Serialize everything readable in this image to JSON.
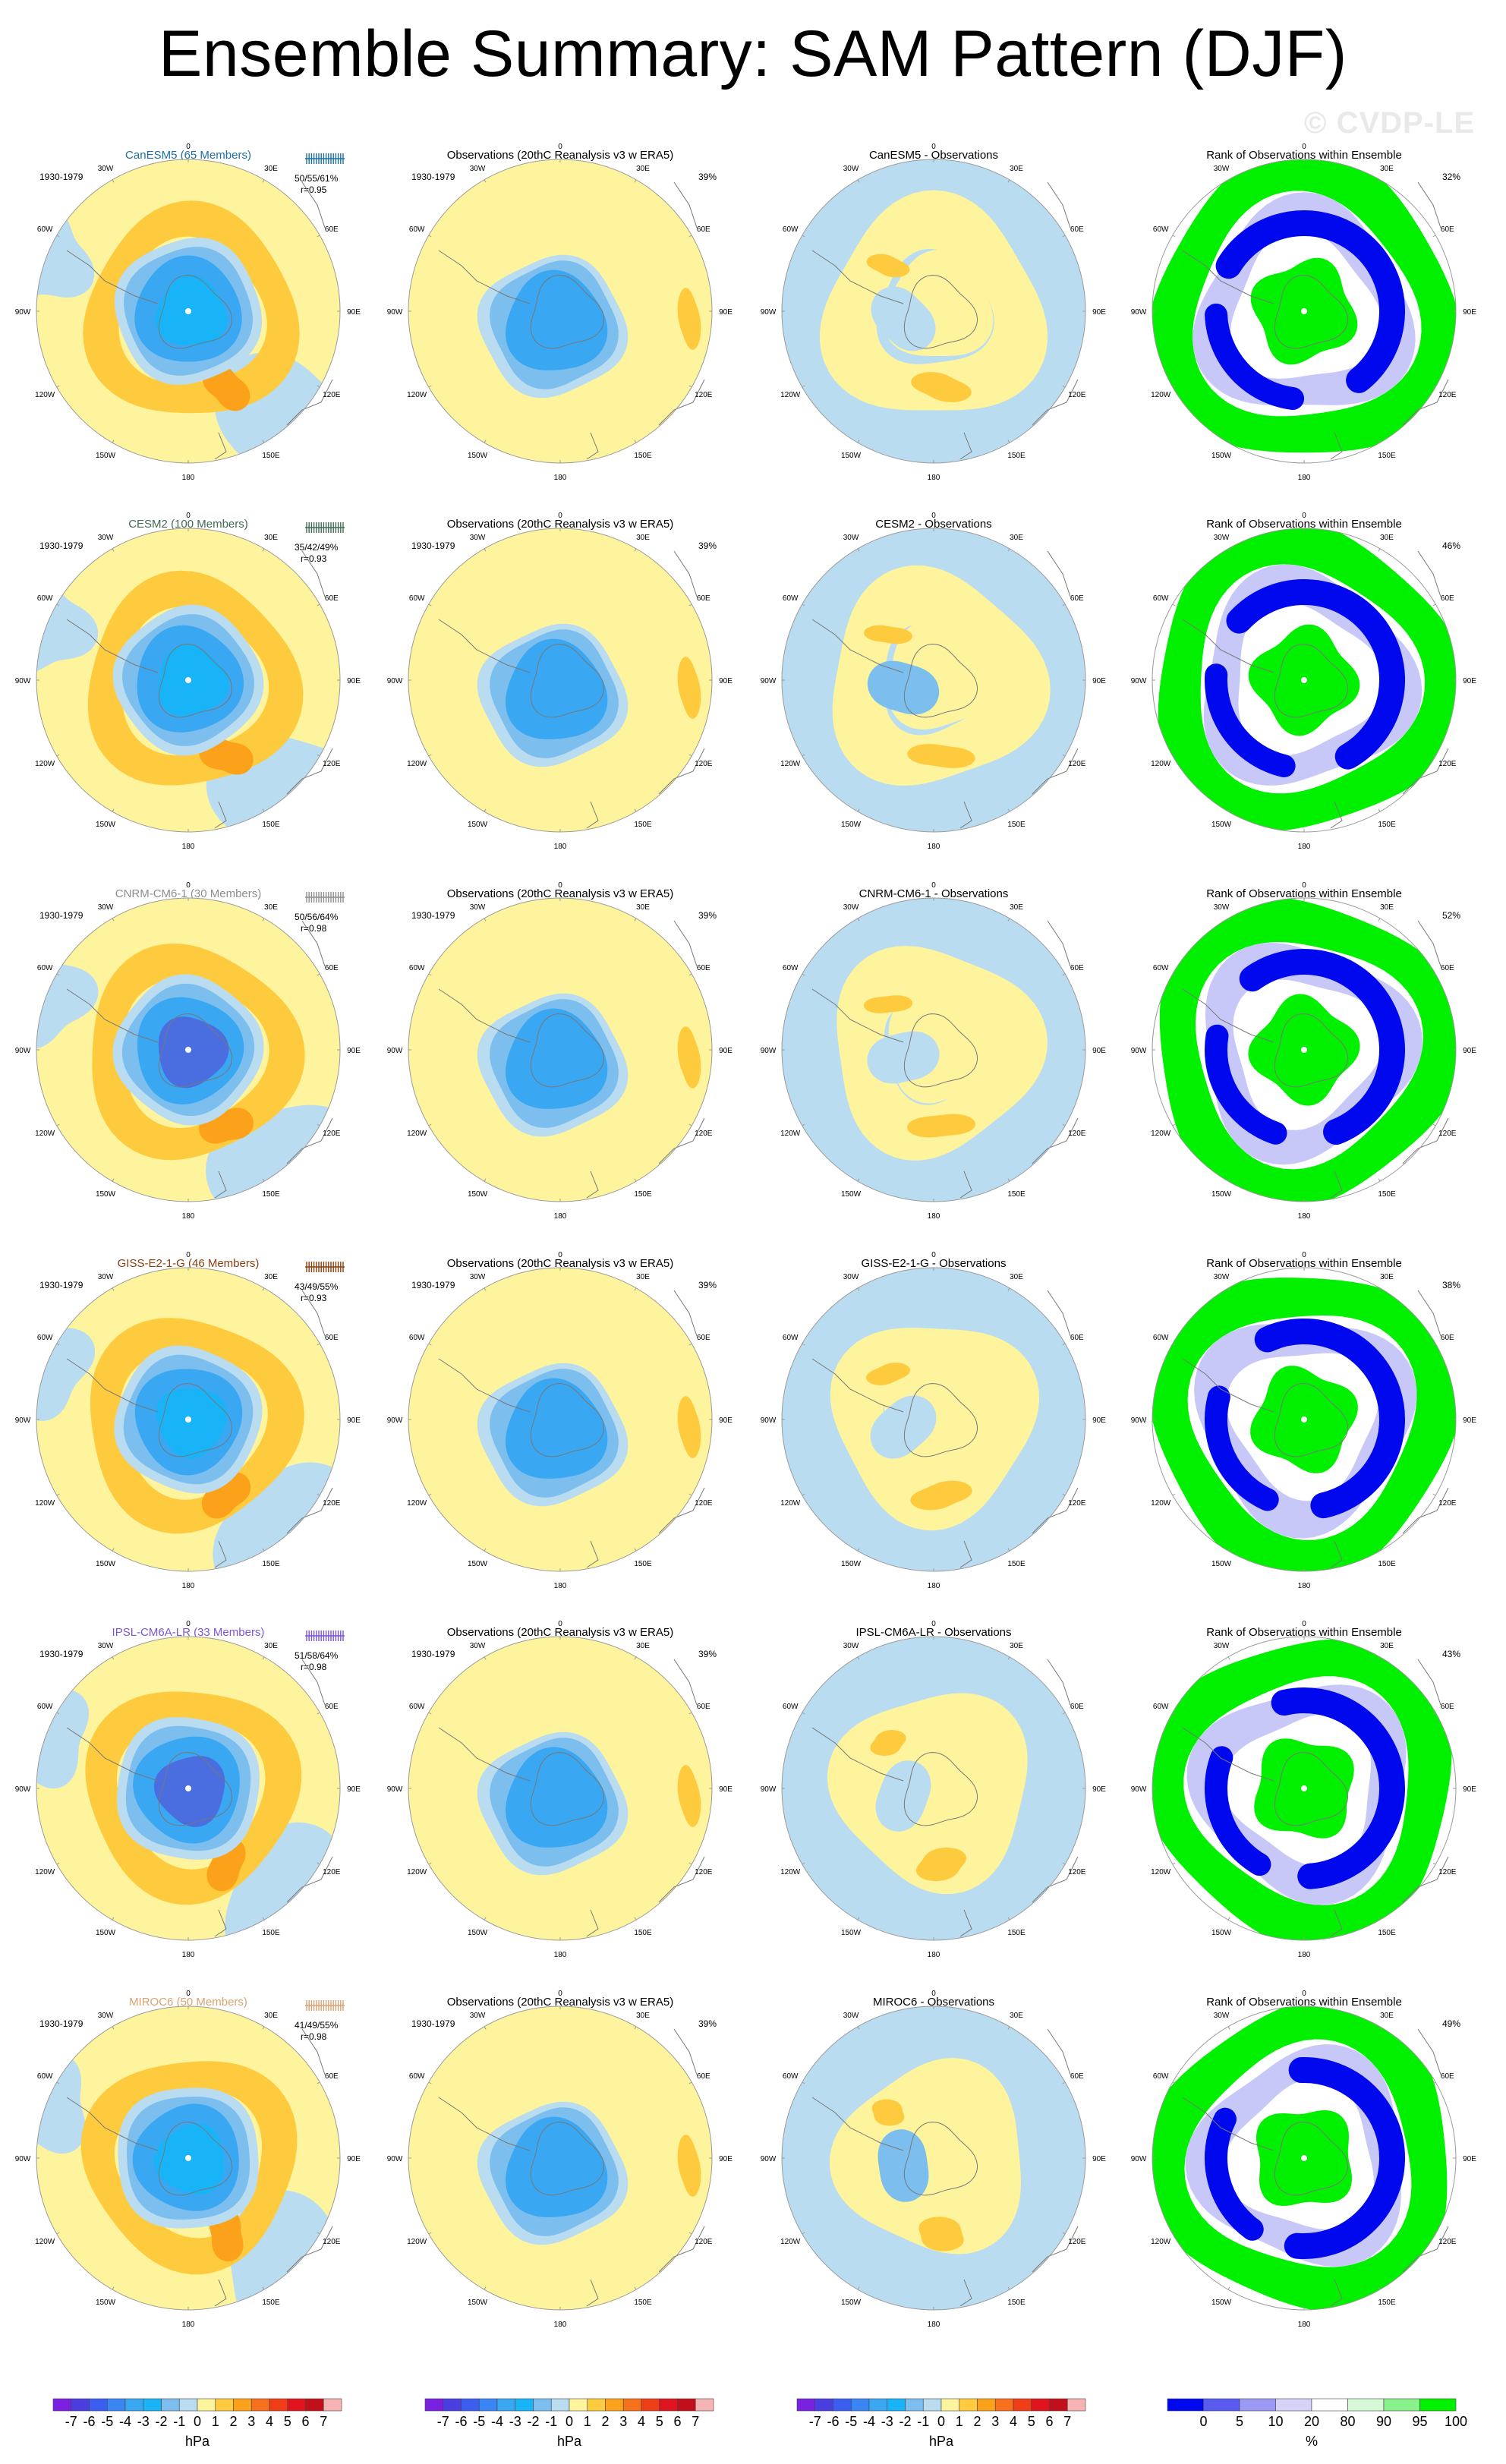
{
  "title": "Ensemble Summary: SAM Pattern (DJF)",
  "watermark": "© CVDP-LE",
  "period": "1930-1979",
  "obs_title": "Observations (20thC Reanalysis v3 w ERA5)",
  "rank_title": "Rank of Observations within Ensemble",
  "lon_labels": [
    "0",
    "30E",
    "60E",
    "90E",
    "120E",
    "150E",
    "180",
    "150W",
    "120W",
    "90W",
    "60W",
    "30W"
  ],
  "colors": {
    "pale_yellow": "#fef49d",
    "orange_light": "#fecb3f",
    "orange": "#fba21a",
    "light_blue": "#b9dcf1",
    "med_blue": "#7cbfee",
    "blue": "#3aa7f3",
    "sky": "#18b4f7",
    "deep_blue": "#4a6ee0",
    "purple_blue": "#5a56d6",
    "rank_green": "#00f000",
    "rank_blue": "#0008ee",
    "rank_lightblue": "#c8c8f8"
  },
  "models": [
    {
      "name": "CanESM5 (65 Members)",
      "short": "CanESM5",
      "color": "#1e6fa0",
      "stats": "50/55/61%",
      "r": "r=0.95",
      "obs_pct": "39%",
      "rank_pct": "32%"
    },
    {
      "name": "CESM2 (100 Members)",
      "short": "CESM2",
      "color": "#416a53",
      "stats": "35/42/49%",
      "r": "r=0.93",
      "obs_pct": "39%",
      "rank_pct": "46%"
    },
    {
      "name": "CNRM-CM6-1 (30 Members)",
      "short": "CNRM-CM6-1",
      "color": "#8e8e8e",
      "stats": "50/56/64%",
      "r": "r=0.98",
      "obs_pct": "39%",
      "rank_pct": "52%"
    },
    {
      "name": "GISS-E2-1-G (46 Members)",
      "short": "GISS-E2-1-G",
      "color": "#8a3e0d",
      "stats": "43/49/55%",
      "r": "r=0.93",
      "obs_pct": "39%",
      "rank_pct": "38%"
    },
    {
      "name": "IPSL-CM6A-LR (33 Members)",
      "short": "IPSL-CM6A-LR",
      "color": "#7a55d6",
      "stats": "51/58/64%",
      "r": "r=0.98",
      "obs_pct": "39%",
      "rank_pct": "43%"
    },
    {
      "name": "MIROC6 (50 Members)",
      "short": "MIROC6",
      "color": "#d9a273",
      "stats": "41/49/55%",
      "r": "r=0.98",
      "obs_pct": "39%",
      "rank_pct": "49%"
    }
  ],
  "diff_suffix": " - Observations",
  "colorbar_hpa": {
    "units": "hPa",
    "ticks": [
      "-7",
      "-6",
      "-5",
      "-4",
      "-3",
      "-2",
      "-1",
      "0",
      "1",
      "2",
      "3",
      "4",
      "5",
      "6",
      "7"
    ],
    "colors": [
      "#7b1fe0",
      "#4a3ee0",
      "#3b5ef0",
      "#3b86f5",
      "#3aa7f3",
      "#18b4f7",
      "#7cbfee",
      "#b9dcf1",
      "#fef49d",
      "#fecb3f",
      "#fba21a",
      "#f7701b",
      "#ef3d18",
      "#e0141c",
      "#c2101a",
      "#f5b3b3"
    ]
  },
  "colorbar_rank": {
    "units": "%",
    "ticks": [
      "0",
      "5",
      "10",
      "20",
      "80",
      "90",
      "95",
      "100"
    ],
    "colors": [
      "#0008ee",
      "#5a5af0",
      "#9a9af5",
      "#d4d4f8",
      "#ffffff",
      "#d6f8d6",
      "#8af28a",
      "#00f000"
    ]
  },
  "chart_data": {
    "type": "heatmap",
    "title": "Ensemble Summary: SAM Pattern (DJF)",
    "layout": "6 model rows x 4 columns (ensemble mean, observations, model minus observations, rank of observations within ensemble)",
    "projection": "south-polar stereographic",
    "period": "1930-1979",
    "units": "hPa",
    "contour_levels": [
      -7,
      -6,
      -5,
      -4,
      -3,
      -2,
      -1,
      0,
      1,
      2,
      3,
      4,
      5,
      6,
      7
    ],
    "rank_levels_pct": [
      0,
      5,
      10,
      20,
      80,
      90,
      95,
      100
    ],
    "observations": {
      "name": "Observations (20thC Reanalysis v3 w ERA5)",
      "variance_explained_pct": 39
    },
    "models": [
      {
        "name": "CanESM5",
        "members": 65,
        "pct_explained_low_mean_high": [
          50,
          55,
          61
        ],
        "r": 0.95,
        "rank_pct": 32
      },
      {
        "name": "CESM2",
        "members": 100,
        "pct_explained_low_mean_high": [
          35,
          42,
          49
        ],
        "r": 0.93,
        "rank_pct": 46
      },
      {
        "name": "CNRM-CM6-1",
        "members": 30,
        "pct_explained_low_mean_high": [
          50,
          56,
          64
        ],
        "r": 0.98,
        "rank_pct": 52
      },
      {
        "name": "GISS-E2-1-G",
        "members": 46,
        "pct_explained_low_mean_high": [
          43,
          49,
          55
        ],
        "r": 0.93,
        "rank_pct": 38
      },
      {
        "name": "IPSL-CM6A-LR",
        "members": 33,
        "pct_explained_low_mean_high": [
          51,
          58,
          64
        ],
        "r": 0.98,
        "rank_pct": 43
      },
      {
        "name": "MIROC6",
        "members": 50,
        "pct_explained_low_mean_high": [
          41,
          49,
          55
        ],
        "r": 0.98,
        "rank_pct": 49
      }
    ]
  }
}
